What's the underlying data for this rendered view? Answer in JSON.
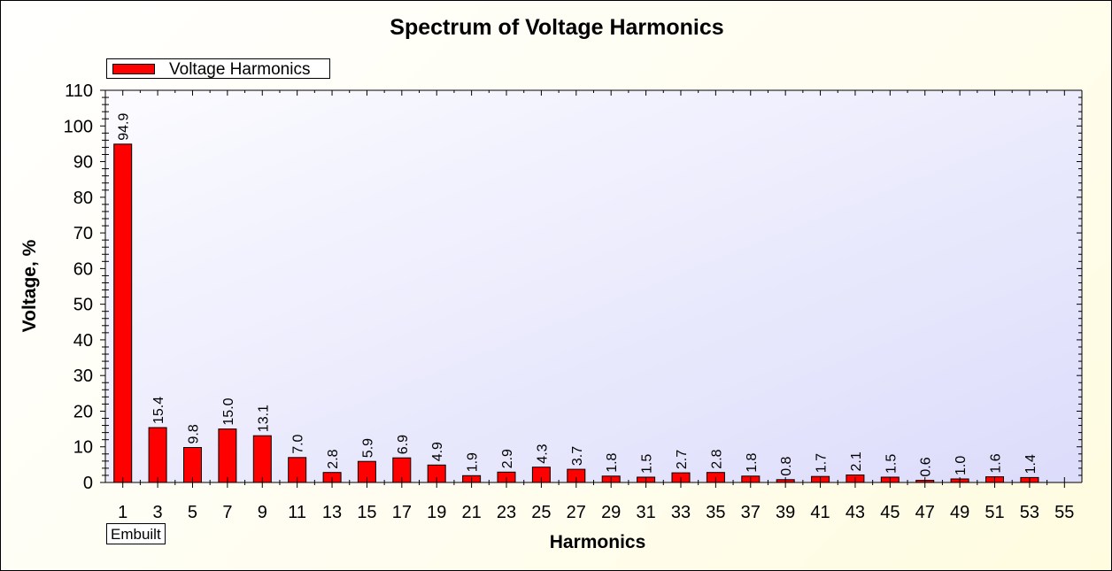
{
  "chart_data": {
    "type": "bar",
    "title": "Spectrum of Voltage Harmonics",
    "xlabel": "Harmonics",
    "ylabel": "Voltage, %",
    "ylim": [
      0,
      110
    ],
    "yticks": [
      0,
      10,
      20,
      30,
      40,
      50,
      60,
      70,
      80,
      90,
      100,
      110
    ],
    "legend": [
      "Voltage Harmonics"
    ],
    "legend_position": "top-left",
    "grid": false,
    "bar_color": "#ff0000",
    "plot_background": [
      "#fbfbff",
      "#dcdcfb"
    ],
    "categories": [
      "1",
      "3",
      "5",
      "7",
      "9",
      "11",
      "13",
      "15",
      "17",
      "19",
      "21",
      "23",
      "25",
      "27",
      "29",
      "31",
      "33",
      "35",
      "37",
      "39",
      "41",
      "43",
      "45",
      "47",
      "49",
      "51",
      "53",
      "55"
    ],
    "series": [
      {
        "name": "Voltage Harmonics",
        "values": [
          94.9,
          15.4,
          9.8,
          15.0,
          13.1,
          7.0,
          2.8,
          5.9,
          6.9,
          4.9,
          1.9,
          2.9,
          4.3,
          3.7,
          1.8,
          1.5,
          2.7,
          2.8,
          1.8,
          0.8,
          1.7,
          2.1,
          1.5,
          0.6,
          1.0,
          1.6,
          1.4,
          null
        ],
        "labels": [
          "94.9",
          "15.4",
          "9.8",
          "15.0",
          "13.1",
          "7.0",
          "2.8",
          "5.9",
          "6.9",
          "4.9",
          "1.9",
          "2.9",
          "4.3",
          "3.7",
          "1.8",
          "1.5",
          "2.7",
          "2.8",
          "1.8",
          "0.8",
          "1.7",
          "2.1",
          "1.5",
          "0.6",
          "1.0",
          "1.6",
          "1.4",
          ""
        ]
      }
    ]
  },
  "footer": {
    "badge": "Embuilt"
  }
}
